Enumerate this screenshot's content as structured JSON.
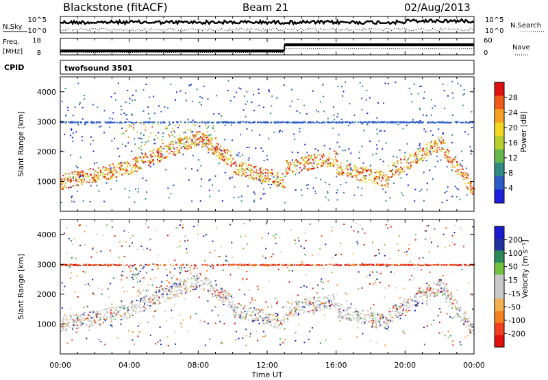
{
  "header": {
    "radar": "Blackstone (fitACF)",
    "beam": "Beam 21",
    "date": "02/Aug/2013"
  },
  "left_labels": {
    "nsky": "N.Sky",
    "freq": "Freq.",
    "freq_unit": "[MHz]",
    "cpid": "CPID"
  },
  "right_labels": {
    "nsearch": "N.Search",
    "nave": "Nave"
  },
  "cpid_value": "twofsound 3501",
  "chart_data": [
    {
      "type": "line",
      "name": "noise",
      "y_ticks_left": [
        "10^5",
        "10^0"
      ],
      "y_ticks_right": [
        "10^5",
        "10^0"
      ],
      "series_left_label": "N.Sky",
      "series_right_label": "N.Search"
    },
    {
      "type": "line",
      "name": "frequency",
      "y_ticks_left": [
        "18",
        "8"
      ],
      "y_ticks_right": [
        "60",
        "0"
      ],
      "freq_mhz_segments": [
        {
          "x_start": 0,
          "x_end": 13,
          "value": 9.5
        },
        {
          "x_start": 13,
          "x_end": 24,
          "value": 14.5
        }
      ],
      "nave_segments": [
        {
          "x_start": 0,
          "x_end": 13,
          "value": 14
        },
        {
          "x_start": 13,
          "x_end": 24,
          "value": 28
        }
      ]
    },
    {
      "type": "heatmap",
      "name": "power",
      "ylabel": "Slant Range [km]",
      "yticks": [
        "1000",
        "2000",
        "3000",
        "4000"
      ],
      "ylim": [
        0,
        4500
      ],
      "xlim": [
        0,
        24
      ],
      "colorbar_label": "Power [dB]",
      "colorbar_ticks": [
        "4",
        "8",
        "12",
        "16",
        "20",
        "24",
        "28"
      ],
      "colorbar_colors": [
        "#1f1fe0",
        "#2a5cc8",
        "#2f8a80",
        "#62b84a",
        "#b8d02c",
        "#f2d620",
        "#f5a020",
        "#f05a18",
        "#e01010"
      ]
    },
    {
      "type": "heatmap",
      "name": "velocity",
      "ylabel": "Slant Range [km]",
      "yticks": [
        "1000",
        "2000",
        "3000",
        "4000"
      ],
      "ylim": [
        0,
        4500
      ],
      "xlim": [
        0,
        24
      ],
      "colorbar_label": "Velocity [m s⁻¹]",
      "colorbar_ticks": [
        "-200",
        "-100",
        "-50",
        "-15",
        "15",
        "50",
        "100",
        "200"
      ],
      "colorbar_colors": [
        "#e01010",
        "#f04020",
        "#f58020",
        "#f5b050",
        "#c8c8c8",
        "#c8c8c8",
        "#70c040",
        "#2a8a5a",
        "#2030a0",
        "#1a1ad0"
      ]
    }
  ],
  "x_axis": {
    "ticks": [
      "00:00",
      "04:00",
      "08:00",
      "12:00",
      "16:00",
      "20:00",
      "00:00"
    ],
    "label": "Time UT"
  }
}
